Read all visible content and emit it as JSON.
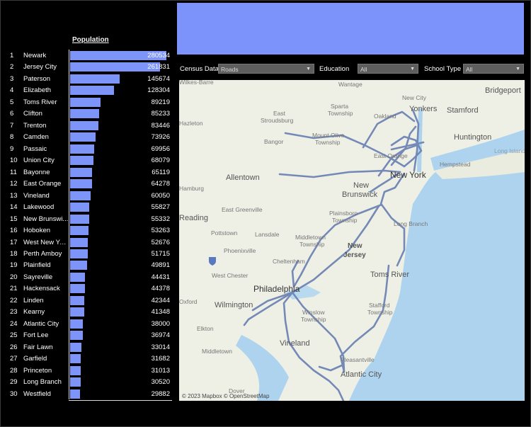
{
  "population_header": "Population",
  "max_population": 300000,
  "rows": [
    {
      "rank": "1",
      "city": "Newark",
      "value": "280534",
      "n": 280534
    },
    {
      "rank": "2",
      "city": "Jersey City",
      "value": "261831",
      "n": 261831
    },
    {
      "rank": "3",
      "city": "Paterson",
      "value": "145674",
      "n": 145674
    },
    {
      "rank": "4",
      "city": "Elizabeth",
      "value": "128304",
      "n": 128304
    },
    {
      "rank": "5",
      "city": "Toms River",
      "value": "89219",
      "n": 89219
    },
    {
      "rank": "6",
      "city": "Clifton",
      "value": "85233",
      "n": 85233
    },
    {
      "rank": "7",
      "city": "Trenton",
      "value": "83446",
      "n": 83446
    },
    {
      "rank": "8",
      "city": "Camden",
      "value": "73926",
      "n": 73926
    },
    {
      "rank": "9",
      "city": "Passaic",
      "value": "69956",
      "n": 69956
    },
    {
      "rank": "10",
      "city": "Union City",
      "value": "68079",
      "n": 68079
    },
    {
      "rank": "11",
      "city": "Bayonne",
      "value": "65119",
      "n": 65119
    },
    {
      "rank": "12",
      "city": "East Orange",
      "value": "64278",
      "n": 64278
    },
    {
      "rank": "13",
      "city": "Vineland",
      "value": "60050",
      "n": 60050
    },
    {
      "rank": "14",
      "city": "Lakewood",
      "value": "55827",
      "n": 55827
    },
    {
      "rank": "15",
      "city": "New Brunswi...",
      "value": "55332",
      "n": 55332
    },
    {
      "rank": "16",
      "city": "Hoboken",
      "value": "53263",
      "n": 53263
    },
    {
      "rank": "17",
      "city": "West New Yo...",
      "value": "52676",
      "n": 52676
    },
    {
      "rank": "18",
      "city": "Perth Amboy",
      "value": "51715",
      "n": 51715
    },
    {
      "rank": "19",
      "city": "Plainfield",
      "value": "49891",
      "n": 49891
    },
    {
      "rank": "20",
      "city": "Sayreville",
      "value": "44431",
      "n": 44431
    },
    {
      "rank": "21",
      "city": "Hackensack",
      "value": "44378",
      "n": 44378
    },
    {
      "rank": "22",
      "city": "Linden",
      "value": "42344",
      "n": 42344
    },
    {
      "rank": "23",
      "city": "Kearny",
      "value": "41348",
      "n": 41348
    },
    {
      "rank": "24",
      "city": "Atlantic City",
      "value": "38000",
      "n": 38000
    },
    {
      "rank": "25",
      "city": "Fort Lee",
      "value": "36974",
      "n": 36974
    },
    {
      "rank": "26",
      "city": "Fair Lawn",
      "value": "33014",
      "n": 33014
    },
    {
      "rank": "27",
      "city": "Garfield",
      "value": "31682",
      "n": 31682
    },
    {
      "rank": "28",
      "city": "Princeton",
      "value": "31013",
      "n": 31013
    },
    {
      "rank": "29",
      "city": "Long Branch",
      "value": "30520",
      "n": 30520
    },
    {
      "rank": "30",
      "city": "Westfield",
      "value": "29882",
      "n": 29882
    }
  ],
  "filters": {
    "census_label": "Census Data",
    "census_value": "Roads",
    "education_label": "Education",
    "education_value": "All",
    "school_label": "School Type",
    "school_value": "All"
  },
  "map": {
    "attribution": "© 2023 Mapbox  © OpenStreetMap",
    "places": {
      "wilkes_barre": "Wilkes-Barre",
      "wantage": "Wantage",
      "bridgeport": "Bridgeport",
      "sparta": "Sparta",
      "sparta2": "Township",
      "new_city": "New City",
      "stamford": "Stamford",
      "east": "East",
      "stroudsburg": "Stroudsburg",
      "oakland": "Oakland",
      "yonkers": "Yonkers",
      "hazleton": "Hazleton",
      "mount_olive": "Mount Olive",
      "mount_olive2": "Township",
      "huntington": "Huntington",
      "bangor": "Bangor",
      "long_island": "Long Island",
      "east_orange": "East Orange",
      "hempstead": "Hempstead",
      "allentown": "Allentown",
      "new_york": "New York",
      "hamburg": "Hamburg",
      "new": "New",
      "brunswick": "Brunswick",
      "east_greenville": "East Greenville",
      "reading": "Reading",
      "plainsboro": "Plainsboro",
      "plainsboro2": "Township",
      "pottstown": "Pottstown",
      "lansdale": "Lansdale",
      "long_branch": "Long Branch",
      "middletown": "Middletown",
      "middletown2": "Township",
      "phoenixville": "Phoenixville",
      "new_jersey1": "New",
      "new_jersey2": "Jersey",
      "cheltenham": "Cheltenham",
      "west_chester": "West Chester",
      "toms_river": "Toms River",
      "philadelphia": "Philadelphia",
      "oxford": "Oxford",
      "wilmington": "Wilmington",
      "winslow": "Winslow",
      "winslow2": "Township",
      "stafford": "Stafford",
      "stafford2": "Township",
      "elkton": "Elkton",
      "vineland": "Vineland",
      "middletown_de": "Middletown",
      "pleasantville": "Pleasantville",
      "atlantic_city": "Atlantic City",
      "dover": "Dover"
    }
  },
  "colors": {
    "bar": "#7d95f8",
    "banner": "#7c93fb",
    "roads": "#6f84b4",
    "water": "#aed3ef",
    "land": "#eef0e6"
  }
}
